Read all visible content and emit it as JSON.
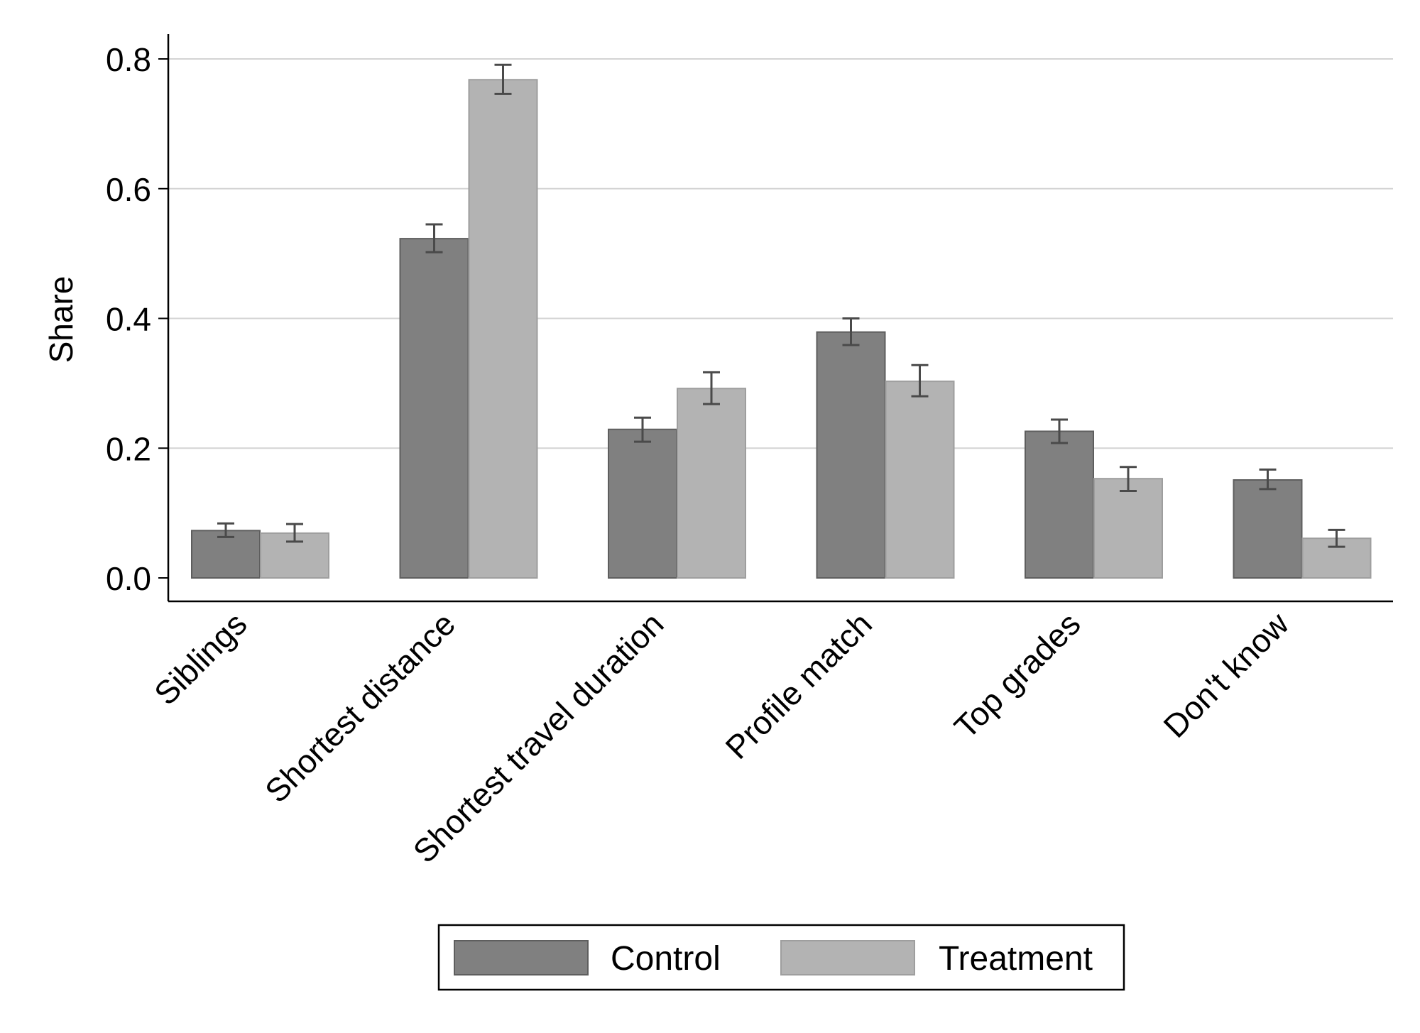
{
  "chart_data": {
    "type": "bar",
    "title": "",
    "xlabel": "",
    "ylabel": "Share",
    "ylim": [
      0,
      0.8
    ],
    "yticks": [
      "0.0",
      "0.2",
      "0.4",
      "0.6",
      "0.8"
    ],
    "grid": true,
    "legend_position": "bottom-center",
    "categories": [
      "Siblings",
      "Shortest distance",
      "Shortest travel duration",
      "Profile match",
      "Top grades",
      "Don't know"
    ],
    "series": [
      {
        "name": "Control",
        "color": "#808080",
        "values": [
          0.073,
          0.523,
          0.229,
          0.379,
          0.226,
          0.151
        ],
        "ci_low": [
          0.063,
          0.502,
          0.21,
          0.359,
          0.208,
          0.137
        ],
        "ci_high": [
          0.084,
          0.545,
          0.247,
          0.4,
          0.244,
          0.167
        ]
      },
      {
        "name": "Treatment",
        "color": "#b3b3b3",
        "values": [
          0.069,
          0.768,
          0.292,
          0.303,
          0.153,
          0.061
        ],
        "ci_low": [
          0.056,
          0.746,
          0.268,
          0.28,
          0.134,
          0.048
        ],
        "ci_high": [
          0.083,
          0.791,
          0.317,
          0.328,
          0.171,
          0.074
        ]
      }
    ]
  }
}
